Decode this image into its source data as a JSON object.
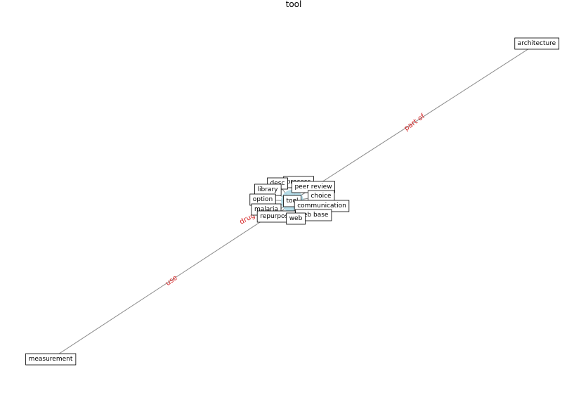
{
  "title": "tool",
  "colors": {
    "edge": "#8c8c8c",
    "edge_label": "#d62728",
    "node_fill": "#add8e6",
    "label_box_fill": "#ffffff",
    "label_box_stroke": "#000000"
  },
  "nodes": [
    {
      "id": "architecture",
      "label": "architecture"
    },
    {
      "id": "measurement",
      "label": "measurement"
    },
    {
      "id": "process",
      "label": "process"
    },
    {
      "id": "desc",
      "label": "desc"
    },
    {
      "id": "peer-review",
      "label": "peer review"
    },
    {
      "id": "library",
      "label": "library"
    },
    {
      "id": "choice",
      "label": "choice"
    },
    {
      "id": "option",
      "label": "option"
    },
    {
      "id": "tool",
      "label": "tool"
    },
    {
      "id": "communication",
      "label": "communication"
    },
    {
      "id": "malaria",
      "label": "malaria"
    },
    {
      "id": "repurpose",
      "label": "repurpose"
    },
    {
      "id": "web-base",
      "label": "web base"
    },
    {
      "id": "web",
      "label": "web"
    }
  ],
  "edges": [
    {
      "source": "tool",
      "target": "architecture",
      "label": "part of"
    },
    {
      "source": "tool",
      "target": "measurement",
      "label": "use"
    },
    {
      "source": "tool",
      "target": "malaria",
      "label": "drug"
    },
    {
      "source": "tool",
      "target": "process",
      "label": ""
    },
    {
      "source": "tool",
      "target": "library",
      "label": ""
    },
    {
      "source": "tool",
      "target": "choice",
      "label": ""
    },
    {
      "source": "tool",
      "target": "option",
      "label": ""
    },
    {
      "source": "tool",
      "target": "communication",
      "label": ""
    },
    {
      "source": "tool",
      "target": "repurpose",
      "label": ""
    },
    {
      "source": "tool",
      "target": "web-base",
      "label": ""
    },
    {
      "source": "tool",
      "target": "web",
      "label": ""
    },
    {
      "source": "tool",
      "target": "peer-review",
      "label": ""
    },
    {
      "source": "tool",
      "target": "desc",
      "label": ""
    }
  ]
}
